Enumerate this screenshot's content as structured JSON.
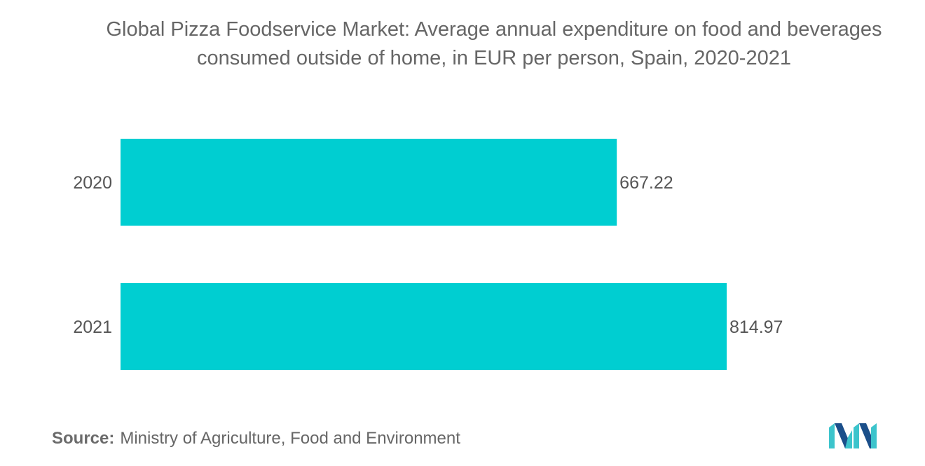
{
  "chart_data": {
    "type": "bar",
    "orientation": "horizontal",
    "title": "Global Pizza Foodservice Market: Average annual expenditure on food and beverages consumed outside of home, in EUR per person, Spain, 2020-2021",
    "categories": [
      "2020",
      "2021"
    ],
    "values": [
      667.22,
      814.97
    ],
    "value_labels": [
      "667.22",
      "814.97"
    ],
    "xlabel": "",
    "ylabel": "",
    "xlim": [
      0,
      1000
    ],
    "grid": false,
    "legend": "none",
    "bar_color": "#00CED1"
  },
  "source": {
    "label": "Source:",
    "text": "Ministry of Agriculture, Food and Environment"
  },
  "logo": {
    "icon": "mordor-intelligence-logo-icon",
    "colors": [
      "#1b4f8a",
      "#3cc4cc"
    ]
  }
}
